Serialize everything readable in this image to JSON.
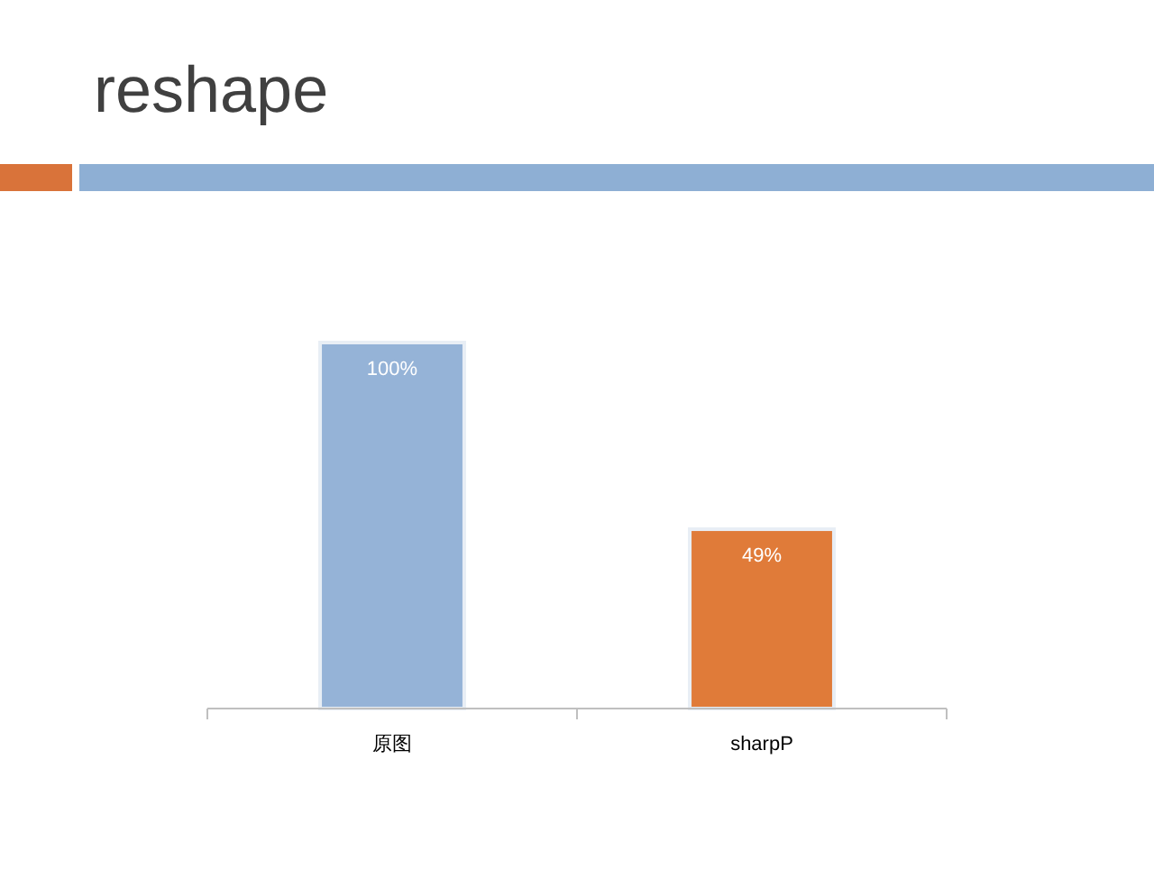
{
  "chart_data": {
    "type": "bar",
    "title": "reshape",
    "categories": [
      "原图",
      "sharpP"
    ],
    "values": [
      100,
      49
    ],
    "colors": [
      "#95b3d7",
      "#e07b39"
    ],
    "value_labels": [
      "100%",
      "49%"
    ]
  }
}
